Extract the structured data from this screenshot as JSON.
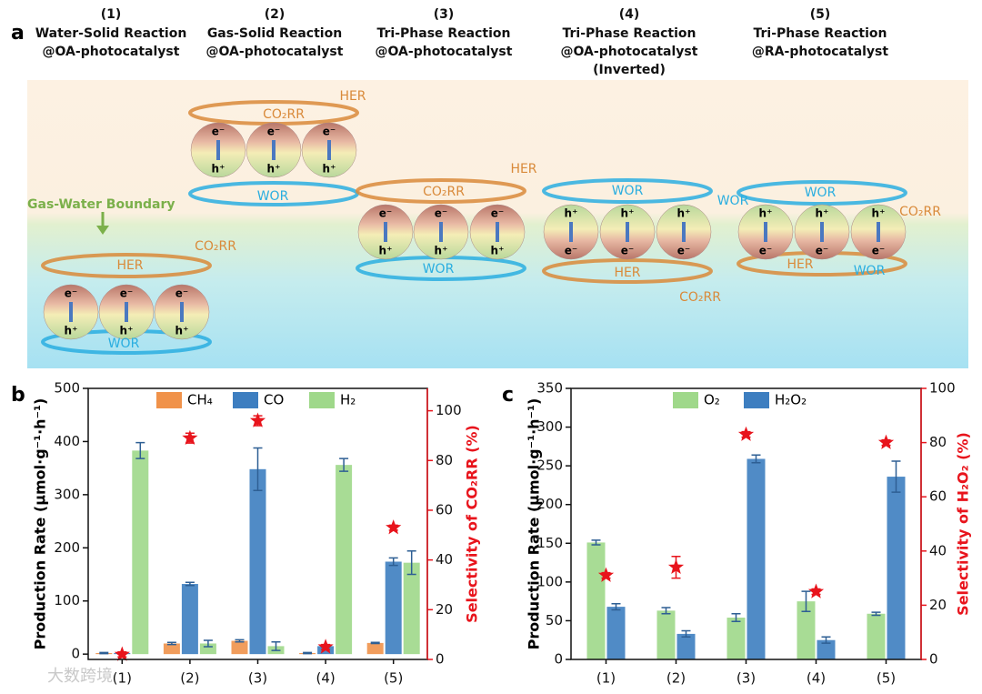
{
  "diagram": {
    "panel_label": "a",
    "columns": [
      {
        "number": "(1)",
        "title": "Water-Solid Reaction",
        "subtitle": "@OA-photocatalyst"
      },
      {
        "number": "(2)",
        "title": "Gas-Solid Reaction",
        "subtitle": "@OA-photocatalyst"
      },
      {
        "number": "(3)",
        "title": "Tri-Phase Reaction",
        "subtitle": "@OA-photocatalyst"
      },
      {
        "number": "(4)",
        "title": "Tri-Phase Reaction",
        "subtitle": "@OA-photocatalyst",
        "note": "(Inverted)"
      },
      {
        "number": "(5)",
        "title": "Tri-Phase Reaction",
        "subtitle": "@RA-photocatalyst"
      }
    ],
    "boundary_label": "Gas-Water Boundary",
    "schemes": [
      {
        "top_charge": "e⁻",
        "bottom_charge": "h⁺",
        "labels": [
          "CO₂RR",
          "HER",
          "WOR"
        ]
      },
      {
        "top_charge": "e⁻",
        "bottom_charge": "h⁺",
        "labels": [
          "CO₂RR",
          "HER",
          "WOR"
        ]
      },
      {
        "top_charge": "e⁻",
        "bottom_charge": "h⁺",
        "labels": [
          "CO₂RR",
          "HER",
          "WOR"
        ]
      },
      {
        "top_charge": "h⁺",
        "bottom_charge": "e⁻",
        "labels": [
          "WOR",
          "HER",
          "CO₂RR"
        ]
      },
      {
        "top_charge": "h⁺",
        "bottom_charge": "e⁻",
        "labels": [
          "WOR",
          "WOR",
          "CO₂RR",
          "HER",
          "WOR"
        ]
      }
    ]
  },
  "watermark": "大数跨境",
  "chart_data": [
    {
      "type": "bar",
      "panel_label": "b",
      "y_label": "Production Rate (μmol·g⁻¹·h⁻¹)",
      "y2_label": "Selectivity of CO₂RR (%)",
      "categories": [
        "(1)",
        "(2)",
        "(3)",
        "(4)",
        "(5)"
      ],
      "series": [
        {
          "name": "CH₄",
          "color": "#f0924a",
          "values": [
            2,
            20,
            25,
            2,
            21
          ],
          "errors": [
            1,
            2,
            2,
            1,
            1
          ]
        },
        {
          "name": "CO",
          "color": "#3d7ec0",
          "values": [
            2,
            132,
            348,
            15,
            174
          ],
          "errors": [
            1,
            3,
            40,
            2,
            7
          ]
        },
        {
          "name": "H₂",
          "color": "#9fd88a",
          "values": [
            383,
            20,
            15,
            356,
            172
          ],
          "errors": [
            15,
            6,
            8,
            12,
            22
          ]
        },
        {
          "color": "#e8141c",
          "axis": "y2",
          "marker": "star",
          "values": [
            2,
            89,
            96,
            5,
            53
          ],
          "errors": [
            1,
            2,
            2,
            1,
            1
          ]
        }
      ],
      "ylim": [
        -10,
        500
      ],
      "yticks": [
        0,
        100,
        200,
        300,
        400,
        500
      ],
      "y2lim": [
        0,
        109
      ],
      "y2ticks": [
        0,
        20,
        40,
        60,
        80,
        100
      ]
    },
    {
      "type": "bar",
      "panel_label": "c",
      "y_label": "Production Rate (μmol·g⁻¹·h⁻¹)",
      "y2_label": "Selectivity of H₂O₂ (%)",
      "categories": [
        "(1)",
        "(2)",
        "(3)",
        "(4)",
        "(5)"
      ],
      "series": [
        {
          "name": "O₂",
          "color": "#9fd88a",
          "values": [
            151,
            63,
            54,
            75,
            59
          ],
          "errors": [
            3,
            4,
            5,
            13,
            2
          ]
        },
        {
          "name": "H₂O₂",
          "color": "#3d7ec0",
          "values": [
            68,
            33,
            259,
            25,
            236
          ],
          "errors": [
            4,
            4,
            5,
            4,
            20
          ]
        },
        {
          "color": "#e8141c",
          "axis": "y2",
          "marker": "star",
          "values": [
            31,
            34,
            83,
            25,
            80
          ],
          "errors": [
            1,
            4,
            1,
            1,
            1
          ]
        }
      ],
      "ylim": [
        0,
        350
      ],
      "yticks": [
        0,
        50,
        100,
        150,
        200,
        250,
        300,
        350
      ],
      "y2lim": [
        0,
        100
      ],
      "y2ticks": [
        0,
        20,
        40,
        60,
        80,
        100
      ]
    }
  ]
}
